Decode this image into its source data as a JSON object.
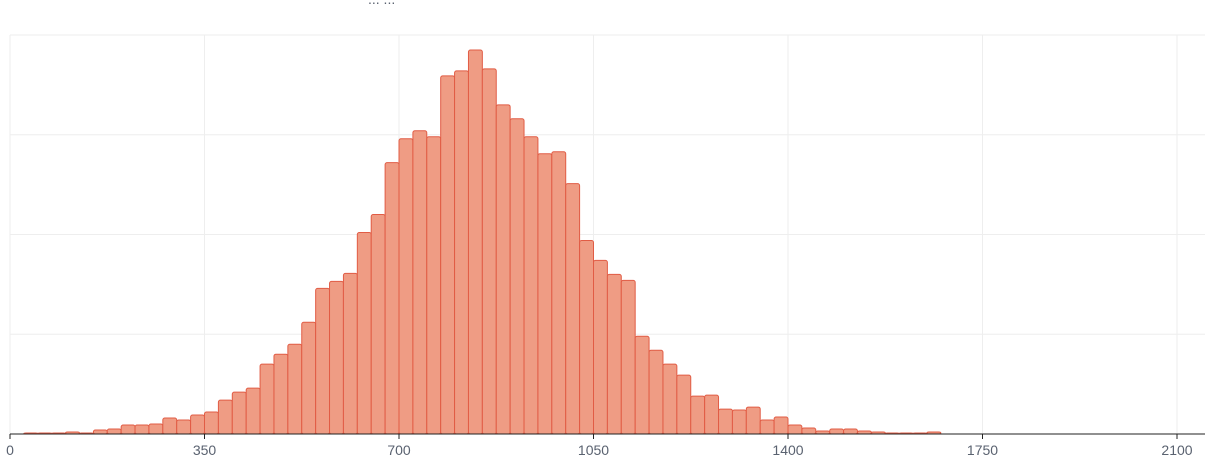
{
  "top_text": "... ...",
  "chart_data": {
    "type": "bar",
    "title": "",
    "xlabel": "",
    "ylabel": "",
    "bin_width": 25,
    "x_first_bin_left": 25,
    "xlim": [
      0,
      2130
    ],
    "ylim": [
      0,
      4
    ],
    "grid": true,
    "x_ticks": [
      0,
      350,
      700,
      1050,
      1400,
      1750,
      2100
    ],
    "x_tick_labels": [
      "0",
      "350",
      "700",
      "1050",
      "1400",
      "1750",
      "2100"
    ],
    "values": [
      0.01,
      0.01,
      0.01,
      0.02,
      0.01,
      0.04,
      0.05,
      0.09,
      0.09,
      0.1,
      0.16,
      0.14,
      0.19,
      0.22,
      0.34,
      0.42,
      0.46,
      0.7,
      0.8,
      0.9,
      1.12,
      1.46,
      1.53,
      1.61,
      2.02,
      2.2,
      2.72,
      2.96,
      3.04,
      2.98,
      3.59,
      3.64,
      3.85,
      3.66,
      3.3,
      3.16,
      2.98,
      2.81,
      2.83,
      2.51,
      1.94,
      1.74,
      1.6,
      1.54,
      0.98,
      0.84,
      0.7,
      0.59,
      0.38,
      0.39,
      0.25,
      0.24,
      0.27,
      0.14,
      0.17,
      0.09,
      0.06,
      0.03,
      0.05,
      0.05,
      0.03,
      0.02,
      0.01,
      0.01,
      0.01,
      0.02
    ],
    "colors": {
      "bar_fill": "#ef9c84",
      "bar_stroke": "#e15c45",
      "grid": "#eeeeee",
      "axis": "#222222",
      "tick_label": "#5a6270"
    }
  }
}
